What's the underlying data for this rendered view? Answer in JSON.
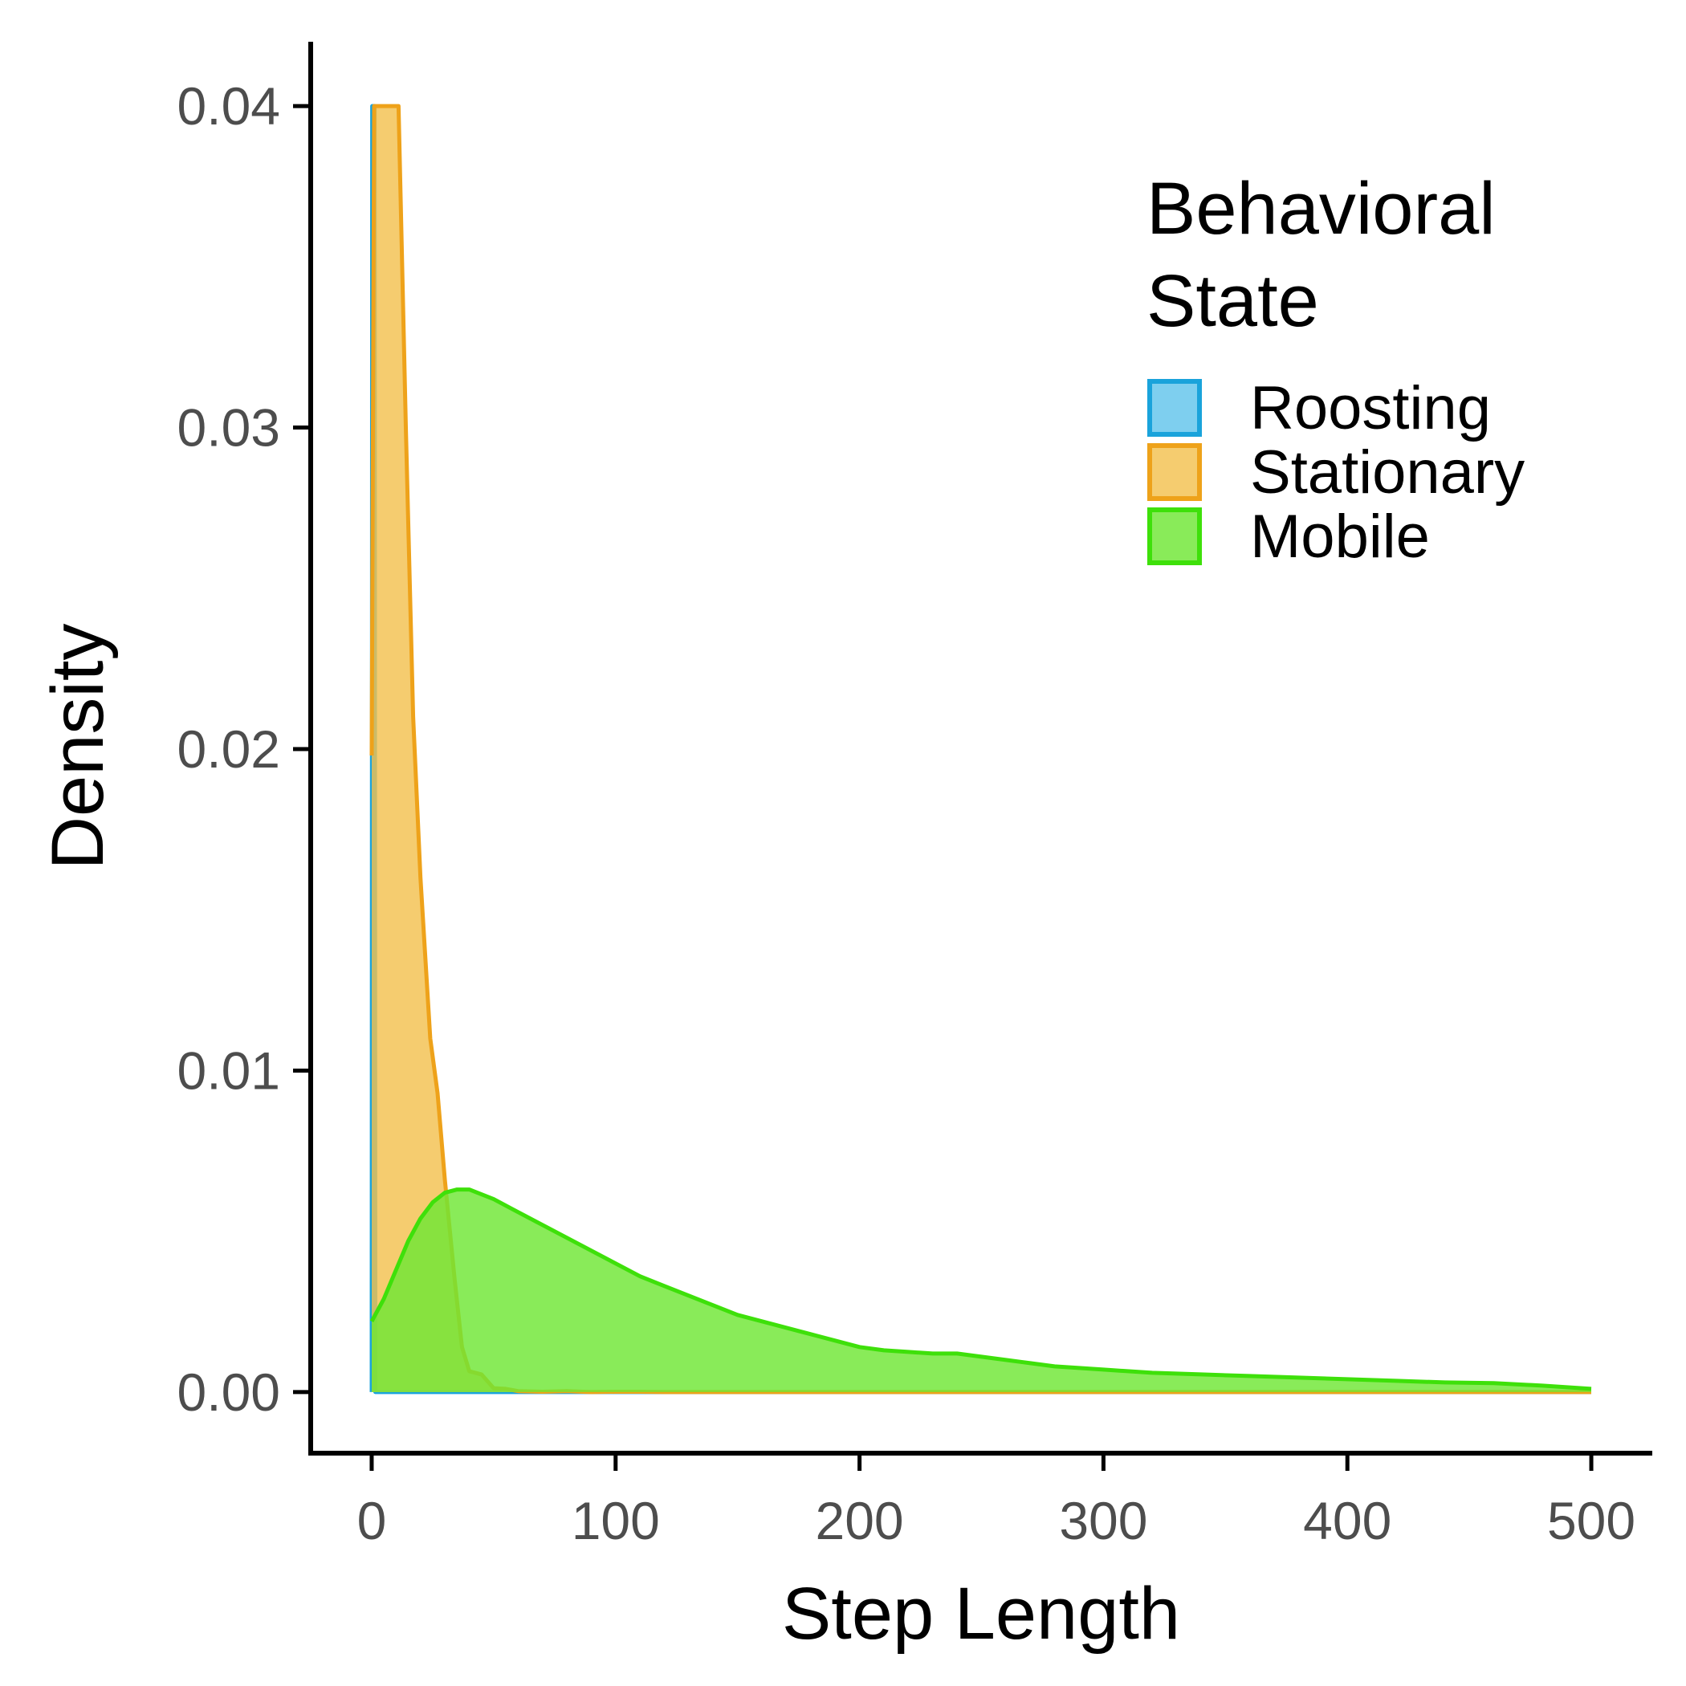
{
  "chart_data": {
    "type": "area",
    "title": "",
    "xlabel": "Step Length",
    "ylabel": "Density",
    "xlim": [
      -25,
      525
    ],
    "ylim": [
      -0.0019,
      0.042
    ],
    "xticks": [
      "0",
      "100",
      "200",
      "300",
      "400",
      "500"
    ],
    "yticks": [
      "0.00",
      "0.01",
      "0.02",
      "0.03",
      "0.04"
    ],
    "grid": false,
    "legend": {
      "position": "top-right",
      "title_lines": [
        "Behavioral",
        "State"
      ]
    },
    "series": [
      {
        "name": "Roosting",
        "color": "#1aa3db",
        "fill": "#62c4ec",
        "points": [
          [
            0,
            0.0
          ],
          [
            0.2,
            0.04
          ],
          [
            1.2,
            0.04
          ],
          [
            1.5,
            0.0
          ],
          [
            20,
            0.0
          ],
          [
            60,
            0.0
          ],
          [
            120,
            0.0
          ],
          [
            300,
            0.0
          ],
          [
            500,
            0.0
          ]
        ]
      },
      {
        "name": "Stationary",
        "color": "#eea21a",
        "fill": "#f3c14f",
        "points": [
          [
            0,
            0.0198
          ],
          [
            1,
            0.04
          ],
          [
            11,
            0.04
          ],
          [
            14,
            0.03
          ],
          [
            17,
            0.021
          ],
          [
            20,
            0.016
          ],
          [
            24,
            0.011
          ],
          [
            27,
            0.0093
          ],
          [
            30,
            0.0066
          ],
          [
            34,
            0.0035
          ],
          [
            37,
            0.0014
          ],
          [
            40,
            0.00065
          ],
          [
            45,
            0.00055
          ],
          [
            50,
            0.00012
          ],
          [
            55,
            0.0001
          ],
          [
            60,
            3e-05
          ],
          [
            70,
            1e-05
          ],
          [
            80,
            3e-05
          ],
          [
            90,
            0.0
          ],
          [
            100,
            1e-05
          ],
          [
            110,
            1e-05
          ],
          [
            120,
            0.0
          ],
          [
            200,
            0.0
          ],
          [
            300,
            0.0
          ],
          [
            400,
            0.0
          ],
          [
            500,
            0.0
          ]
        ]
      },
      {
        "name": "Mobile",
        "color": "#3ee00a",
        "fill": "#6fe735",
        "points": [
          [
            0,
            0.0022
          ],
          [
            5,
            0.0029
          ],
          [
            10,
            0.0038
          ],
          [
            15,
            0.0047
          ],
          [
            20,
            0.0054
          ],
          [
            25,
            0.0059
          ],
          [
            30,
            0.0062
          ],
          [
            35,
            0.0063
          ],
          [
            40,
            0.0063
          ],
          [
            50,
            0.006
          ],
          [
            60,
            0.0056
          ],
          [
            70,
            0.0052
          ],
          [
            80,
            0.0048
          ],
          [
            90,
            0.0044
          ],
          [
            100,
            0.004
          ],
          [
            110,
            0.0036
          ],
          [
            120,
            0.0033
          ],
          [
            130,
            0.003
          ],
          [
            140,
            0.0027
          ],
          [
            150,
            0.0024
          ],
          [
            160,
            0.0022
          ],
          [
            170,
            0.002
          ],
          [
            180,
            0.0018
          ],
          [
            190,
            0.0016
          ],
          [
            200,
            0.0014
          ],
          [
            210,
            0.0013
          ],
          [
            220,
            0.00125
          ],
          [
            230,
            0.0012
          ],
          [
            240,
            0.0012
          ],
          [
            250,
            0.0011
          ],
          [
            260,
            0.001
          ],
          [
            270,
            0.0009
          ],
          [
            280,
            0.0008
          ],
          [
            300,
            0.0007
          ],
          [
            320,
            0.0006
          ],
          [
            340,
            0.00055
          ],
          [
            360,
            0.0005
          ],
          [
            380,
            0.00045
          ],
          [
            400,
            0.0004
          ],
          [
            420,
            0.00035
          ],
          [
            440,
            0.0003
          ],
          [
            460,
            0.00028
          ],
          [
            480,
            0.0002
          ],
          [
            500,
            0.0001
          ]
        ]
      }
    ]
  }
}
